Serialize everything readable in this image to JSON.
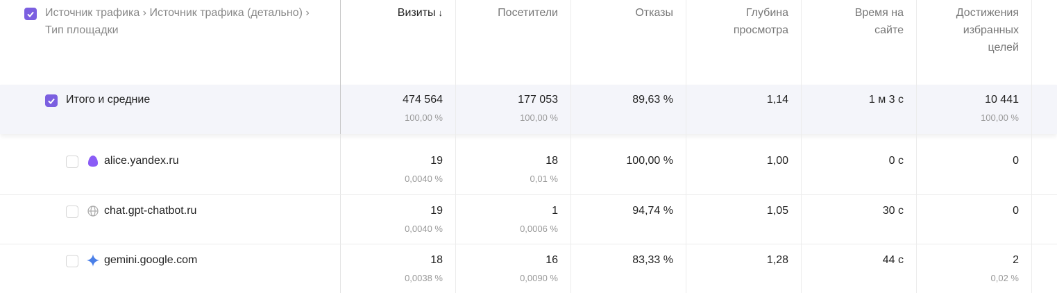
{
  "table": {
    "dimension_header": "Источник трафика › Источник трафика (детально) › Тип площадки",
    "sort_arrow": "↓",
    "columns": [
      "Визиты",
      "Посетители",
      "Отказы",
      "Глубина просмотра",
      "Время на сайте",
      "Достижения избранных целей"
    ],
    "totals": {
      "label": "Итого и средние",
      "cells": [
        {
          "main": "474 564",
          "sub": "100,00 %"
        },
        {
          "main": "177 053",
          "sub": "100,00 %"
        },
        {
          "main": "89,63 %"
        },
        {
          "main": "1,14"
        },
        {
          "main": "1 м 3 с"
        },
        {
          "main": "10 441",
          "sub": "100,00 %"
        }
      ]
    },
    "rows": [
      {
        "label": "alice.yandex.ru",
        "cells": [
          {
            "main": "19",
            "sub": "0,0040 %"
          },
          {
            "main": "18",
            "sub": "0,01 %"
          },
          {
            "main": "100,00 %"
          },
          {
            "main": "1,00"
          },
          {
            "main": "0 с"
          },
          {
            "main": "0"
          }
        ]
      },
      {
        "label": "chat.gpt-chatbot.ru",
        "cells": [
          {
            "main": "19",
            "sub": "0,0040 %"
          },
          {
            "main": "1",
            "sub": "0,0006 %"
          },
          {
            "main": "94,74 %"
          },
          {
            "main": "1,05"
          },
          {
            "main": "30 с"
          },
          {
            "main": "0"
          }
        ]
      },
      {
        "label": "gemini.google.com",
        "cells": [
          {
            "main": "18",
            "sub": "0,0038 %"
          },
          {
            "main": "16",
            "sub": "0,0090 %"
          },
          {
            "main": "83,33 %"
          },
          {
            "main": "1,28"
          },
          {
            "main": "44 с"
          },
          {
            "main": "2",
            "sub": "0,02 %"
          }
        ]
      }
    ]
  }
}
